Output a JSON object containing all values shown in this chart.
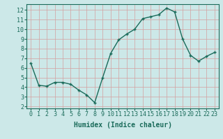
{
  "x": [
    0,
    1,
    2,
    3,
    4,
    5,
    6,
    7,
    8,
    9,
    10,
    11,
    12,
    13,
    14,
    15,
    16,
    17,
    18,
    19,
    20,
    21,
    22,
    23
  ],
  "y": [
    6.5,
    4.2,
    4.1,
    4.5,
    4.5,
    4.3,
    3.7,
    3.2,
    2.4,
    5.0,
    7.5,
    8.9,
    9.5,
    10.0,
    11.1,
    11.3,
    11.5,
    12.2,
    11.8,
    9.0,
    7.3,
    6.7,
    7.2,
    7.6
  ],
  "line_color": "#1a6b5a",
  "marker": "+",
  "marker_size": 3,
  "bg_color": "#cce8e8",
  "grid_color": "#b8d4d4",
  "xlabel": "Humidex (Indice chaleur)",
  "xlim": [
    -0.5,
    23.5
  ],
  "ylim": [
    1.8,
    12.6
  ],
  "yticks": [
    2,
    3,
    4,
    5,
    6,
    7,
    8,
    9,
    10,
    11,
    12
  ],
  "xticks": [
    0,
    1,
    2,
    3,
    4,
    5,
    6,
    7,
    8,
    9,
    10,
    11,
    12,
    13,
    14,
    15,
    16,
    17,
    18,
    19,
    20,
    21,
    22,
    23
  ],
  "tick_color": "#1a6b5a",
  "label_fontsize": 7,
  "tick_fontsize": 6,
  "linewidth": 1.0
}
